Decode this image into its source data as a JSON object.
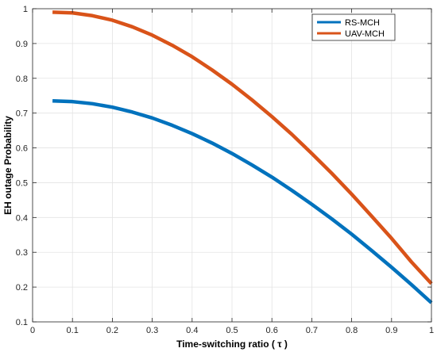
{
  "chart_data": {
    "type": "line",
    "title": "",
    "xlabel": "Time-switching ratio ( τ )",
    "ylabel": "EH outage Probability",
    "xlim": [
      0,
      1
    ],
    "ylim": [
      0.1,
      1
    ],
    "xticks": [
      "0",
      "0.1",
      "0.2",
      "0.3",
      "0.4",
      "0.5",
      "0.6",
      "0.7",
      "0.8",
      "0.9",
      "1"
    ],
    "yticks": [
      "0.1",
      "0.2",
      "0.3",
      "0.4",
      "0.5",
      "0.6",
      "0.7",
      "0.8",
      "0.9",
      "1"
    ],
    "grid": true,
    "legend_position": "top-right",
    "x": [
      0.05,
      0.1,
      0.15,
      0.2,
      0.25,
      0.3,
      0.35,
      0.4,
      0.45,
      0.5,
      0.55,
      0.6,
      0.65,
      0.7,
      0.75,
      0.8,
      0.85,
      0.9,
      0.95,
      1.0
    ],
    "series": [
      {
        "name": "RS-MCH",
        "color": "#0072BD",
        "values": [
          0.735,
          0.733,
          0.727,
          0.717,
          0.703,
          0.686,
          0.665,
          0.641,
          0.614,
          0.584,
          0.551,
          0.516,
          0.478,
          0.438,
          0.396,
          0.352,
          0.305,
          0.257,
          0.207,
          0.155
        ]
      },
      {
        "name": "UAV-MCH",
        "color": "#D95319",
        "values": [
          0.99,
          0.988,
          0.98,
          0.967,
          0.948,
          0.924,
          0.895,
          0.862,
          0.824,
          0.783,
          0.738,
          0.69,
          0.639,
          0.584,
          0.527,
          0.467,
          0.404,
          0.34,
          0.272,
          0.21
        ]
      }
    ]
  }
}
